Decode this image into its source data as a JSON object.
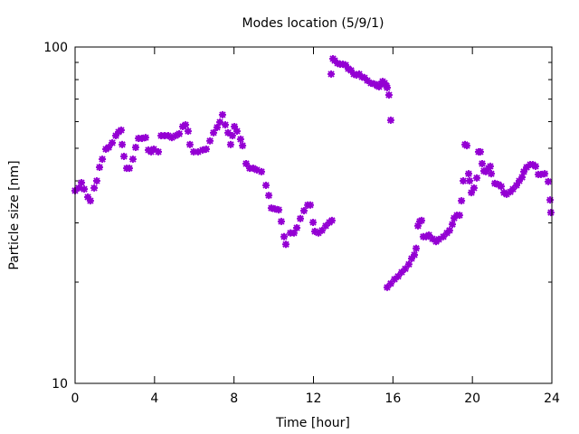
{
  "chart_data": {
    "type": "scatter",
    "title": "Modes location (5/9/1)",
    "xlabel": "Time [hour]",
    "ylabel": "Particle size [nm]",
    "xlim": [
      0,
      24
    ],
    "ylim": [
      10,
      100
    ],
    "yscale": "log",
    "grid": false,
    "xticks": [
      "0",
      "4",
      "8",
      "12",
      "16",
      "20",
      "24"
    ],
    "xtick_values": [
      0,
      4,
      8,
      12,
      16,
      20,
      24
    ],
    "yticks": [
      "10",
      "100"
    ],
    "ytick_values": [
      10,
      100
    ],
    "yminor_values": [
      20,
      30,
      40,
      50,
      60,
      70,
      80,
      90
    ],
    "marker_color": "#9400d3",
    "series": [
      {
        "name": "modes",
        "points": [
          [
            0.0,
            37.4
          ],
          [
            0.18,
            38.1
          ],
          [
            0.32,
            39.5
          ],
          [
            0.46,
            37.8
          ],
          [
            0.64,
            35.8
          ],
          [
            0.77,
            34.9
          ],
          [
            0.96,
            38.1
          ],
          [
            1.09,
            40.0
          ],
          [
            1.23,
            43.9
          ],
          [
            1.37,
            46.4
          ],
          [
            1.55,
            49.7
          ],
          [
            1.69,
            50.3
          ],
          [
            1.87,
            51.9
          ],
          [
            2.05,
            54.5
          ],
          [
            2.19,
            55.9
          ],
          [
            2.32,
            56.6
          ],
          [
            2.37,
            51.3
          ],
          [
            2.46,
            47.3
          ],
          [
            2.6,
            43.6
          ],
          [
            2.73,
            43.6
          ],
          [
            2.91,
            46.4
          ],
          [
            3.05,
            50.3
          ],
          [
            3.19,
            53.5
          ],
          [
            3.37,
            53.5
          ],
          [
            3.55,
            53.8
          ],
          [
            3.69,
            49.4
          ],
          [
            3.83,
            48.8
          ],
          [
            3.96,
            49.7
          ],
          [
            4.19,
            48.8
          ],
          [
            4.33,
            54.5
          ],
          [
            4.51,
            54.5
          ],
          [
            4.69,
            54.5
          ],
          [
            4.87,
            53.8
          ],
          [
            5.06,
            54.5
          ],
          [
            5.24,
            55.2
          ],
          [
            5.42,
            58.0
          ],
          [
            5.56,
            58.7
          ],
          [
            5.69,
            56.2
          ],
          [
            5.78,
            51.3
          ],
          [
            5.97,
            48.8
          ],
          [
            6.19,
            48.8
          ],
          [
            6.42,
            49.4
          ],
          [
            6.6,
            49.7
          ],
          [
            6.79,
            52.6
          ],
          [
            6.97,
            55.6
          ],
          [
            7.15,
            57.7
          ],
          [
            7.29,
            59.8
          ],
          [
            7.42,
            62.9
          ],
          [
            7.56,
            58.7
          ],
          [
            7.7,
            55.6
          ],
          [
            7.83,
            51.3
          ],
          [
            7.92,
            54.5
          ],
          [
            8.02,
            58.0
          ],
          [
            8.15,
            56.2
          ],
          [
            8.33,
            53.2
          ],
          [
            8.43,
            50.9
          ],
          [
            8.61,
            45.0
          ],
          [
            8.79,
            43.6
          ],
          [
            8.97,
            43.6
          ],
          [
            9.15,
            43.1
          ],
          [
            9.38,
            42.6
          ],
          [
            9.61,
            38.8
          ],
          [
            9.75,
            36.2
          ],
          [
            9.88,
            33.2
          ],
          [
            10.06,
            33.0
          ],
          [
            10.25,
            32.8
          ],
          [
            10.38,
            30.3
          ],
          [
            10.52,
            27.3
          ],
          [
            10.61,
            25.9
          ],
          [
            10.84,
            28.0
          ],
          [
            11.02,
            28.0
          ],
          [
            11.16,
            29.0
          ],
          [
            11.34,
            30.9
          ],
          [
            11.52,
            32.6
          ],
          [
            11.71,
            33.9
          ],
          [
            11.84,
            33.9
          ],
          [
            11.98,
            30.1
          ],
          [
            12.07,
            28.3
          ],
          [
            12.25,
            28.0
          ],
          [
            12.43,
            28.5
          ],
          [
            12.62,
            29.4
          ],
          [
            12.8,
            30.1
          ],
          [
            12.93,
            30.5
          ],
          [
            12.89,
            83.1
          ],
          [
            12.98,
            92.3
          ],
          [
            13.07,
            91.1
          ],
          [
            13.21,
            89.5
          ],
          [
            13.34,
            88.9
          ],
          [
            13.48,
            88.9
          ],
          [
            13.62,
            88.4
          ],
          [
            13.75,
            86.2
          ],
          [
            13.89,
            85.2
          ],
          [
            14.03,
            83.1
          ],
          [
            14.16,
            82.5
          ],
          [
            14.3,
            83.1
          ],
          [
            14.44,
            81.5
          ],
          [
            14.57,
            81.0
          ],
          [
            14.71,
            79.5
          ],
          [
            14.89,
            78.1
          ],
          [
            15.07,
            77.6
          ],
          [
            15.21,
            76.7
          ],
          [
            15.3,
            76.2
          ],
          [
            15.39,
            77.6
          ],
          [
            15.48,
            79.0
          ],
          [
            15.58,
            78.1
          ],
          [
            15.67,
            76.7
          ],
          [
            15.71,
            75.7
          ],
          [
            15.8,
            72.0
          ],
          [
            15.89,
            60.6
          ],
          [
            15.71,
            19.3
          ],
          [
            15.89,
            19.8
          ],
          [
            16.08,
            20.4
          ],
          [
            16.26,
            20.8
          ],
          [
            16.44,
            21.4
          ],
          [
            16.62,
            21.9
          ],
          [
            16.8,
            22.6
          ],
          [
            16.94,
            23.5
          ],
          [
            17.08,
            24.1
          ],
          [
            17.17,
            25.2
          ],
          [
            17.26,
            29.4
          ],
          [
            17.35,
            30.3
          ],
          [
            17.44,
            30.5
          ],
          [
            17.53,
            27.3
          ],
          [
            17.67,
            27.3
          ],
          [
            17.81,
            27.6
          ],
          [
            17.99,
            26.9
          ],
          [
            18.17,
            26.4
          ],
          [
            18.31,
            26.8
          ],
          [
            18.54,
            27.3
          ],
          [
            18.72,
            28.0
          ],
          [
            18.85,
            28.5
          ],
          [
            18.99,
            29.7
          ],
          [
            19.08,
            31.0
          ],
          [
            19.22,
            31.6
          ],
          [
            19.35,
            31.6
          ],
          [
            19.45,
            34.9
          ],
          [
            19.54,
            40.0
          ],
          [
            19.63,
            51.3
          ],
          [
            19.72,
            50.9
          ],
          [
            19.81,
            42.0
          ],
          [
            19.86,
            40.0
          ],
          [
            19.95,
            36.9
          ],
          [
            20.08,
            38.1
          ],
          [
            20.22,
            40.8
          ],
          [
            20.31,
            48.8
          ],
          [
            20.4,
            48.8
          ],
          [
            20.49,
            45.0
          ],
          [
            20.58,
            42.8
          ],
          [
            20.68,
            42.6
          ],
          [
            20.81,
            43.6
          ],
          [
            20.9,
            44.2
          ],
          [
            20.95,
            42.0
          ],
          [
            21.13,
            39.3
          ],
          [
            21.31,
            39.0
          ],
          [
            21.45,
            38.5
          ],
          [
            21.59,
            36.9
          ],
          [
            21.72,
            36.5
          ],
          [
            21.91,
            37.1
          ],
          [
            22.04,
            37.8
          ],
          [
            22.22,
            38.8
          ],
          [
            22.36,
            40.0
          ],
          [
            22.5,
            41.0
          ],
          [
            22.59,
            42.6
          ],
          [
            22.73,
            43.9
          ],
          [
            22.91,
            44.7
          ],
          [
            23.04,
            44.7
          ],
          [
            23.18,
            44.2
          ],
          [
            23.32,
            41.8
          ],
          [
            23.45,
            41.8
          ],
          [
            23.64,
            42.0
          ],
          [
            23.82,
            39.8
          ],
          [
            23.91,
            35.1
          ],
          [
            23.95,
            32.2
          ]
        ]
      }
    ]
  }
}
